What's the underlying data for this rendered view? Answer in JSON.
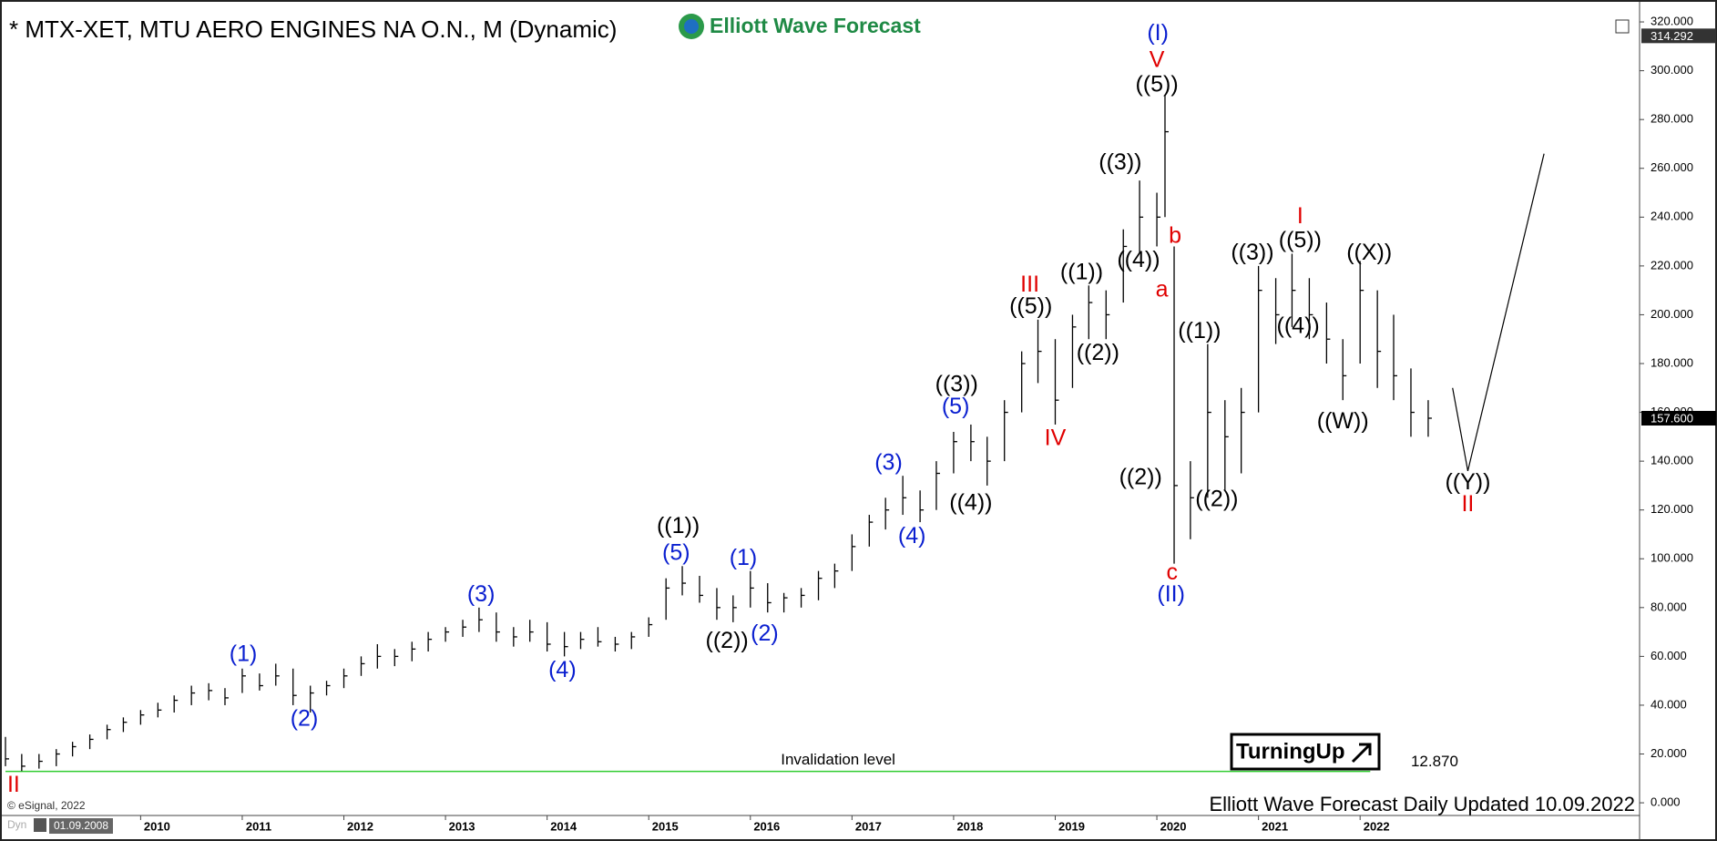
{
  "chart_data": {
    "type": "ohlc",
    "title": "* MTX-XET, MTU AERO ENGINES NA O.N., M (Dynamic)",
    "logo": "Elliott Wave Forecast",
    "footer": "Elliott Wave Forecast Daily Updated 10.09.2022",
    "copyright": "© eSignal, 2022",
    "start_date": "01.09.2008",
    "mode": "Dyn",
    "brand": "TurningUp",
    "color": "#000000",
    "x": [
      2008.67,
      2008.83,
      2009.0,
      2009.17,
      2009.33,
      2009.5,
      2009.67,
      2009.83,
      2010.0,
      2010.17,
      2010.33,
      2010.5,
      2010.67,
      2010.83,
      2011.0,
      2011.17,
      2011.33,
      2011.5,
      2011.67,
      2011.83,
      2012.0,
      2012.17,
      2012.33,
      2012.5,
      2012.67,
      2012.83,
      2013.0,
      2013.17,
      2013.33,
      2013.5,
      2013.67,
      2013.83,
      2014.0,
      2014.17,
      2014.33,
      2014.5,
      2014.67,
      2014.83,
      2015.0,
      2015.17,
      2015.33,
      2015.5,
      2015.67,
      2015.83,
      2016.0,
      2016.17,
      2016.33,
      2016.5,
      2016.67,
      2016.83,
      2017.0,
      2017.17,
      2017.33,
      2017.5,
      2017.67,
      2017.83,
      2018.0,
      2018.17,
      2018.33,
      2018.5,
      2018.67,
      2018.83,
      2019.0,
      2019.17,
      2019.33,
      2019.5,
      2019.67,
      2019.83,
      2020.0,
      2020.08,
      2020.17,
      2020.33,
      2020.5,
      2020.67,
      2020.83,
      2021.0,
      2021.17,
      2021.33,
      2021.5,
      2021.67,
      2021.83,
      2022.0,
      2022.17,
      2022.33,
      2022.5,
      2022.67
    ],
    "high": [
      27,
      20,
      20,
      22,
      25,
      28,
      32,
      35,
      38,
      41,
      44,
      48,
      49,
      47,
      55,
      53,
      57,
      55,
      48,
      50,
      55,
      60,
      65,
      63,
      66,
      70,
      72,
      75,
      80,
      78,
      72,
      75,
      74,
      70,
      70,
      72,
      68,
      70,
      76,
      92,
      97,
      93,
      88,
      85,
      95,
      90,
      86,
      88,
      95,
      98,
      110,
      118,
      125,
      134,
      128,
      140,
      152,
      155,
      150,
      165,
      185,
      198,
      190,
      200,
      212,
      210,
      235,
      255,
      250,
      290,
      228,
      140,
      188,
      165,
      170,
      220,
      215,
      225,
      215,
      205,
      190,
      222,
      210,
      200,
      178,
      165
    ],
    "low": [
      15,
      13,
      14,
      15,
      19,
      22,
      26,
      29,
      32,
      35,
      37,
      40,
      42,
      40,
      45,
      46,
      48,
      40,
      37,
      44,
      47,
      52,
      55,
      56,
      58,
      62,
      66,
      68,
      70,
      66,
      64,
      66,
      62,
      60,
      63,
      64,
      62,
      63,
      68,
      75,
      85,
      82,
      75,
      74,
      80,
      78,
      78,
      80,
      83,
      88,
      95,
      105,
      112,
      118,
      115,
      120,
      135,
      140,
      130,
      140,
      160,
      172,
      155,
      170,
      190,
      190,
      205,
      225,
      228,
      240,
      98,
      108,
      125,
      128,
      135,
      160,
      188,
      195,
      190,
      180,
      165,
      180,
      170,
      165,
      150,
      150
    ],
    "close": [
      18,
      15,
      17,
      20,
      23,
      26,
      30,
      33,
      36,
      38,
      42,
      45,
      46,
      43,
      52,
      48,
      52,
      44,
      45,
      48,
      52,
      57,
      60,
      60,
      63,
      67,
      70,
      72,
      75,
      70,
      68,
      70,
      65,
      64,
      67,
      66,
      65,
      68,
      73,
      88,
      90,
      85,
      80,
      80,
      88,
      82,
      84,
      85,
      92,
      95,
      105,
      115,
      120,
      125,
      120,
      135,
      148,
      148,
      140,
      160,
      180,
      185,
      165,
      195,
      205,
      200,
      228,
      240,
      240,
      275,
      130,
      125,
      160,
      150,
      160,
      210,
      200,
      210,
      200,
      190,
      175,
      210,
      185,
      175,
      160,
      157.6
    ],
    "projection": {
      "x": [
        2022.91,
        2023.06,
        2023.81
      ],
      "values": [
        170,
        136,
        266
      ]
    },
    "xlim": [
      2008.67,
      2024.75
    ],
    "xticks": [
      2010,
      2011,
      2012,
      2013,
      2014,
      2015,
      2016,
      2017,
      2018,
      2019,
      2020,
      2021,
      2022
    ],
    "ylim": [
      -5.2,
      324.5
    ],
    "yticks": [
      {
        "value": 0,
        "label": "0.000"
      },
      {
        "value": 20,
        "label": "20.000"
      },
      {
        "value": 40,
        "label": "40.000"
      },
      {
        "value": 60,
        "label": "60.000"
      },
      {
        "value": 80,
        "label": "80.000"
      },
      {
        "value": 100,
        "label": "100.000"
      },
      {
        "value": 120,
        "label": "120.000"
      },
      {
        "value": 140,
        "label": "140.000"
      },
      {
        "value": 160,
        "label": "160.000"
      },
      {
        "value": 180,
        "label": "180.000"
      },
      {
        "value": 200,
        "label": "200.000"
      },
      {
        "value": 220,
        "label": "220.000"
      },
      {
        "value": 240,
        "label": "240.000"
      },
      {
        "value": 260,
        "label": "260.000"
      },
      {
        "value": 280,
        "label": "280.000"
      },
      {
        "value": 300,
        "label": "300.000"
      },
      {
        "value": 320,
        "label": "320.000"
      }
    ],
    "top_price": {
      "value": 314.292,
      "label": "314.292"
    },
    "last_price": {
      "value": 157.6,
      "label": "157.600"
    },
    "invalidation": {
      "text": "Invalidation level",
      "value": 12.87,
      "label": "12.870",
      "color": "#33cc33"
    },
    "annotations": [
      {
        "text": "II",
        "x": 2008.75,
        "y": 7,
        "color": "#e00000"
      },
      {
        "text": "(1)",
        "x": 2011.01,
        "y": 60.6,
        "color": "#0a1fd0"
      },
      {
        "text": "(2)",
        "x": 2011.61,
        "y": 34,
        "color": "#0a1fd0"
      },
      {
        "text": "(3)",
        "x": 2013.35,
        "y": 85,
        "color": "#0a1fd0"
      },
      {
        "text": "(4)",
        "x": 2014.15,
        "y": 54,
        "color": "#0a1fd0"
      },
      {
        "text": "((1))",
        "x": 2015.29,
        "y": 113,
        "color": "#000000"
      },
      {
        "text": "(5)",
        "x": 2015.27,
        "y": 102,
        "color": "#0a1fd0"
      },
      {
        "text": "(1)",
        "x": 2015.93,
        "y": 100,
        "color": "#0a1fd0"
      },
      {
        "text": "((2))",
        "x": 2015.77,
        "y": 66,
        "color": "#000000"
      },
      {
        "text": "(2)",
        "x": 2016.14,
        "y": 69,
        "color": "#0a1fd0"
      },
      {
        "text": "(3)",
        "x": 2017.36,
        "y": 139,
        "color": "#0a1fd0"
      },
      {
        "text": "(4)",
        "x": 2017.59,
        "y": 109,
        "color": "#0a1fd0"
      },
      {
        "text": "(5)",
        "x": 2018.02,
        "y": 162,
        "color": "#0a1fd0"
      },
      {
        "text": "((3))",
        "x": 2018.03,
        "y": 171,
        "color": "#000000"
      },
      {
        "text": "((4))",
        "x": 2018.17,
        "y": 122.5,
        "color": "#000000"
      },
      {
        "text": "III",
        "x": 2018.75,
        "y": 212,
        "color": "#e00000"
      },
      {
        "text": "((5))",
        "x": 2018.76,
        "y": 203,
        "color": "#000000"
      },
      {
        "text": "IV",
        "x": 2019.0,
        "y": 149,
        "color": "#e00000"
      },
      {
        "text": "((1))",
        "x": 2019.26,
        "y": 217,
        "color": "#000000"
      },
      {
        "text": "((2))",
        "x": 2019.42,
        "y": 184,
        "color": "#000000"
      },
      {
        "text": "((3))",
        "x": 2019.64,
        "y": 262,
        "color": "#000000"
      },
      {
        "text": "((4))",
        "x": 2019.82,
        "y": 222,
        "color": "#000000"
      },
      {
        "text": "((5))",
        "x": 2020.0,
        "y": 294,
        "color": "#000000"
      },
      {
        "text": "V",
        "x": 2020.0,
        "y": 304,
        "color": "#e00000"
      },
      {
        "text": "(I)",
        "x": 2020.01,
        "y": 315,
        "color": "#0a1fd0"
      },
      {
        "text": "b",
        "x": 2020.18,
        "y": 232,
        "color": "#e00000"
      },
      {
        "text": "a",
        "x": 2020.05,
        "y": 210,
        "color": "#e00000"
      },
      {
        "text": "((2))",
        "x": 2019.84,
        "y": 133,
        "color": "#000000"
      },
      {
        "text": "((1))",
        "x": 2020.42,
        "y": 193,
        "color": "#000000"
      },
      {
        "text": "((2))",
        "x": 2020.59,
        "y": 124,
        "color": "#000000"
      },
      {
        "text": "c",
        "x": 2020.15,
        "y": 94,
        "color": "#e00000"
      },
      {
        "text": "(II)",
        "x": 2020.14,
        "y": 85,
        "color": "#0a1fd0"
      },
      {
        "text": "((3))",
        "x": 2020.94,
        "y": 225,
        "color": "#000000"
      },
      {
        "text": "I",
        "x": 2021.41,
        "y": 240,
        "color": "#e00000"
      },
      {
        "text": "((5))",
        "x": 2021.41,
        "y": 230,
        "color": "#000000"
      },
      {
        "text": "((4))",
        "x": 2021.39,
        "y": 195,
        "color": "#000000"
      },
      {
        "text": "((X))",
        "x": 2022.09,
        "y": 225,
        "color": "#000000"
      },
      {
        "text": "((W))",
        "x": 2021.83,
        "y": 156,
        "color": "#000000"
      },
      {
        "text": "((Y))",
        "x": 2023.06,
        "y": 131,
        "color": "#000000"
      },
      {
        "text": "II",
        "x": 2023.06,
        "y": 122,
        "color": "#e00000"
      }
    ]
  }
}
